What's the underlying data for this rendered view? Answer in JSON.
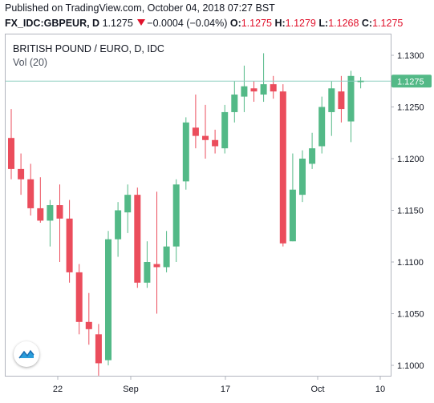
{
  "header": {
    "published": "Published on TradingView.com, October 04, 2018 07:27 BST",
    "symbol": "FX_IDC:GBPEUR, D",
    "last": "1.1275",
    "change": "−0.0004 (−0.04%)",
    "o_label": "O:",
    "o_value": "1.1275",
    "h_label": "H:",
    "h_value": "1.1279",
    "l_label": "L:",
    "l_value": "1.1268",
    "c_label": "C:",
    "c_value": "1.1275"
  },
  "legend": {
    "title": "BRITISH POUND / EURO, D, IDC",
    "volume": "Vol (20)"
  },
  "icons": {
    "logo": "tradingview-logo-icon",
    "change": "down-triangle-icon"
  },
  "colors": {
    "up": "#53b987",
    "down": "#eb4d5c",
    "price_line": "#8dcfc1",
    "price_label_bg": "#53b987"
  },
  "chart_data": {
    "type": "candlestick",
    "title": "BRITISH POUND / EURO, D, IDC",
    "ylim": [
      1.097,
      1.131
    ],
    "yticks": [
      "1.1300",
      "1.1250",
      "1.1200",
      "1.1150",
      "1.1100",
      "1.1050",
      "1.1000"
    ],
    "xticks": [
      "22",
      "Sep",
      "17",
      "Oct",
      "10"
    ],
    "current_price": "1.1275",
    "candles": [
      {
        "o": 1.122,
        "h": 1.1248,
        "l": 1.118,
        "c": 1.119
      },
      {
        "o": 1.119,
        "h": 1.1205,
        "l": 1.1165,
        "c": 1.118
      },
      {
        "o": 1.118,
        "h": 1.1195,
        "l": 1.1145,
        "c": 1.1152
      },
      {
        "o": 1.1152,
        "h": 1.1182,
        "l": 1.1138,
        "c": 1.114
      },
      {
        "o": 1.114,
        "h": 1.116,
        "l": 1.1115,
        "c": 1.1155
      },
      {
        "o": 1.1155,
        "h": 1.1175,
        "l": 1.11,
        "c": 1.1142
      },
      {
        "o": 1.1142,
        "h": 1.116,
        "l": 1.108,
        "c": 1.109
      },
      {
        "o": 1.109,
        "h": 1.1098,
        "l": 1.103,
        "c": 1.1042
      },
      {
        "o": 1.1042,
        "h": 1.107,
        "l": 1.102,
        "c": 1.1035
      },
      {
        "o": 1.103,
        "h": 1.104,
        "l": 1.099,
        "c": 1.1002
      },
      {
        "o": 1.1005,
        "h": 1.113,
        "l": 1.1,
        "c": 1.1122
      },
      {
        "o": 1.1122,
        "h": 1.1158,
        "l": 1.1105,
        "c": 1.115
      },
      {
        "o": 1.1148,
        "h": 1.1175,
        "l": 1.1128,
        "c": 1.1165
      },
      {
        "o": 1.1165,
        "h": 1.1172,
        "l": 1.1075,
        "c": 1.108
      },
      {
        "o": 1.108,
        "h": 1.112,
        "l": 1.1075,
        "c": 1.11
      },
      {
        "o": 1.1098,
        "h": 1.1168,
        "l": 1.105,
        "c": 1.1095
      },
      {
        "o": 1.1095,
        "h": 1.113,
        "l": 1.109,
        "c": 1.1115
      },
      {
        "o": 1.1115,
        "h": 1.118,
        "l": 1.11,
        "c": 1.1175
      },
      {
        "o": 1.1178,
        "h": 1.124,
        "l": 1.117,
        "c": 1.1235
      },
      {
        "o": 1.123,
        "h": 1.1262,
        "l": 1.121,
        "c": 1.1222
      },
      {
        "o": 1.1222,
        "h": 1.1252,
        "l": 1.12,
        "c": 1.1218
      },
      {
        "o": 1.1218,
        "h": 1.1228,
        "l": 1.1205,
        "c": 1.1212
      },
      {
        "o": 1.121,
        "h": 1.1252,
        "l": 1.1205,
        "c": 1.1245
      },
      {
        "o": 1.1245,
        "h": 1.1275,
        "l": 1.1235,
        "c": 1.1262
      },
      {
        "o": 1.126,
        "h": 1.129,
        "l": 1.1245,
        "c": 1.127
      },
      {
        "o": 1.1268,
        "h": 1.1275,
        "l": 1.1255,
        "c": 1.1265
      },
      {
        "o": 1.1262,
        "h": 1.1302,
        "l": 1.1255,
        "c": 1.1272
      },
      {
        "o": 1.1272,
        "h": 1.128,
        "l": 1.1258,
        "c": 1.1265
      },
      {
        "o": 1.1265,
        "h": 1.1272,
        "l": 1.1115,
        "c": 1.1118
      },
      {
        "o": 1.112,
        "h": 1.1205,
        "l": 1.112,
        "c": 1.117
      },
      {
        "o": 1.1165,
        "h": 1.1208,
        "l": 1.1158,
        "c": 1.12
      },
      {
        "o": 1.1195,
        "h": 1.1225,
        "l": 1.119,
        "c": 1.121
      },
      {
        "o": 1.1212,
        "h": 1.126,
        "l": 1.1205,
        "c": 1.125
      },
      {
        "o": 1.1245,
        "h": 1.1275,
        "l": 1.1222,
        "c": 1.1268
      },
      {
        "o": 1.1265,
        "h": 1.128,
        "l": 1.1235,
        "c": 1.1248
      },
      {
        "o": 1.1236,
        "h": 1.1285,
        "l": 1.1216,
        "c": 1.128
      },
      {
        "o": 1.1275,
        "h": 1.1279,
        "l": 1.1268,
        "c": 1.1275
      }
    ]
  }
}
